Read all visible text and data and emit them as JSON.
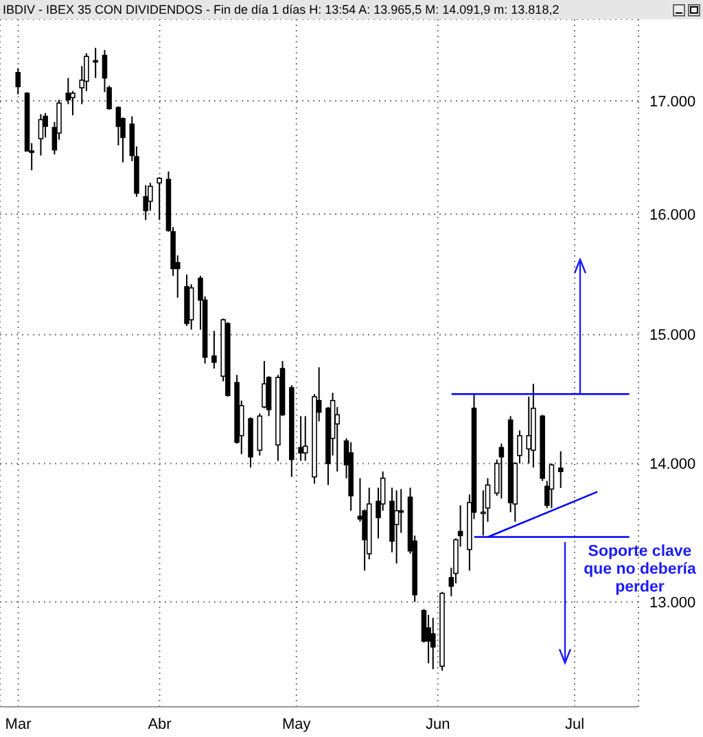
{
  "chart_data": {
    "type": "candlestick",
    "title": "IBDIV - IBEX 35 CON DIVIDENDOS - Fin de día 1 días H: 13:54 A: 13.965,5 M: 14.091,9 m: 13.818,2",
    "x": [
      "--03-01",
      "--03-03",
      "--03-04",
      "--03-06",
      "--03-07",
      "--03-09",
      "--03-10",
      "--03-12",
      "--03-13",
      "--03-15",
      "--03-16",
      "--03-18",
      "--03-20",
      "--03-21",
      "--03-23",
      "--03-24",
      "--03-26",
      "--03-27",
      "--03-29",
      "--03-30",
      "--04-01",
      "--04-03",
      "--04-04",
      "--04-05",
      "--04-07",
      "--04-08",
      "--04-10",
      "--04-11",
      "--04-13",
      "--04-15",
      "--04-16",
      "--04-18",
      "--04-19",
      "--04-21",
      "--04-23",
      "--04-24",
      "--04-25",
      "--04-27",
      "--04-28",
      "--04-30",
      "--05-02",
      "--05-03",
      "--05-05",
      "--05-06",
      "--05-08",
      "--05-09",
      "--05-10",
      "--05-12",
      "--05-13",
      "--05-15",
      "--05-16",
      "--05-17",
      "--05-19",
      "--05-20",
      "--05-22",
      "--05-23",
      "--05-24",
      "--05-26",
      "--05-27",
      "--05-29",
      "--05-30",
      "--05-31",
      "--06-02",
      "--06-04",
      "--06-05",
      "--06-06",
      "--06-08",
      "--06-09",
      "--06-11",
      "--06-12",
      "--06-14",
      "--06-15",
      "--06-17",
      "--06-18",
      "--06-19",
      "--06-21",
      "--06-22",
      "--06-24",
      "--06-25",
      "--06-26",
      "--06-28"
    ],
    "ohlc": [
      [
        17260,
        17300,
        17060,
        17130
      ],
      [
        17070,
        17080,
        16550,
        16550
      ],
      [
        16550,
        16620,
        16380,
        16540
      ],
      [
        16660,
        16880,
        16510,
        16830
      ],
      [
        16860,
        16890,
        16670,
        16770
      ],
      [
        16760,
        16810,
        16520,
        16560
      ],
      [
        16710,
        17010,
        16650,
        16980
      ],
      [
        17070,
        17210,
        16970,
        17010
      ],
      [
        17030,
        17090,
        16870,
        17070
      ],
      [
        17120,
        17320,
        16970,
        17190
      ],
      [
        17180,
        17440,
        17090,
        17410
      ],
      [
        17370,
        17490,
        17210,
        17360
      ],
      [
        17420,
        17470,
        17080,
        17210
      ],
      [
        17120,
        17140,
        16920,
        16930
      ],
      [
        16940,
        16950,
        16600,
        16770
      ],
      [
        16840,
        16850,
        16450,
        16670
      ],
      [
        16790,
        16860,
        16460,
        16510
      ],
      [
        16500,
        16590,
        16150,
        16180
      ],
      [
        16150,
        16250,
        15950,
        16030
      ],
      [
        16110,
        16270,
        16030,
        16240
      ],
      [
        16270,
        16320,
        15950,
        16310
      ],
      [
        16300,
        16370,
        15850,
        15860
      ],
      [
        15850,
        15890,
        15480,
        15540
      ],
      [
        15590,
        15650,
        15300,
        15540
      ],
      [
        15390,
        15490,
        15070,
        15090
      ],
      [
        15120,
        15410,
        15040,
        15380
      ],
      [
        15460,
        15480,
        15040,
        15280
      ],
      [
        15280,
        15310,
        14770,
        14820
      ],
      [
        14830,
        15030,
        14730,
        14780
      ],
      [
        14670,
        15130,
        14630,
        15120
      ],
      [
        15090,
        15100,
        14510,
        14520
      ],
      [
        14620,
        14680,
        14150,
        14160
      ],
      [
        14210,
        14480,
        14070,
        14440
      ],
      [
        14340,
        14350,
        13970,
        14050
      ],
      [
        14100,
        14380,
        14060,
        14360
      ],
      [
        14430,
        14790,
        14420,
        14610
      ],
      [
        14660,
        14670,
        14360,
        14410
      ],
      [
        14140,
        14680,
        14020,
        14660
      ],
      [
        14730,
        14790,
        14360,
        14370
      ],
      [
        14580,
        14600,
        13900,
        14030
      ],
      [
        14120,
        14360,
        14020,
        14080
      ],
      [
        14080,
        14360,
        14020,
        14130
      ],
      [
        13900,
        14530,
        13850,
        14510
      ],
      [
        14480,
        14740,
        14320,
        14390
      ],
      [
        14420,
        14430,
        13840,
        14000
      ],
      [
        14190,
        14540,
        14060,
        14480
      ],
      [
        14300,
        14430,
        13940,
        14370
      ],
      [
        14170,
        14190,
        13890,
        13990
      ],
      [
        14080,
        14160,
        13650,
        13760
      ],
      [
        13610,
        13890,
        13570,
        13590
      ],
      [
        13650,
        13660,
        13220,
        13440
      ],
      [
        13340,
        13820,
        13300,
        13700
      ],
      [
        13720,
        13820,
        13450,
        13600
      ],
      [
        13700,
        13940,
        13650,
        13890
      ],
      [
        13720,
        13820,
        13350,
        13430
      ],
      [
        13550,
        13800,
        13270,
        13650
      ],
      [
        13650,
        13810,
        13490,
        13640
      ],
      [
        13750,
        13820,
        13340,
        13360
      ],
      [
        13430,
        13470,
        13000,
        13050
      ],
      [
        12940,
        12950,
        12720,
        12730
      ],
      [
        12820,
        12910,
        12580,
        12730
      ],
      [
        12780,
        12890,
        12540,
        12690
      ],
      [
        12560,
        13070,
        12530,
        13060
      ],
      [
        13170,
        13240,
        13040,
        13110
      ],
      [
        13200,
        13450,
        13130,
        13440
      ],
      [
        13500,
        13690,
        13390,
        13470
      ],
      [
        13370,
        13770,
        13220,
        13710
      ],
      [
        14420,
        14530,
        13590,
        13640
      ],
      [
        13630,
        13800,
        13470,
        13640
      ],
      [
        13670,
        13890,
        13570,
        13840
      ],
      [
        13780,
        14030,
        13760,
        14000
      ],
      [
        14120,
        14150,
        13740,
        14050
      ],
      [
        14330,
        14360,
        13640,
        13710
      ],
      [
        13700,
        14010,
        13570,
        14000
      ],
      [
        14060,
        14250,
        14000,
        14210
      ],
      [
        14110,
        14510,
        14000,
        14210
      ],
      [
        14100,
        14610,
        13970,
        14420
      ],
      [
        14360,
        14370,
        13870,
        13890
      ],
      [
        13830,
        13870,
        13670,
        13690
      ],
      [
        13810,
        14000,
        13670,
        13990
      ],
      [
        13965.5,
        14091.9,
        13818.2,
        13940
      ]
    ],
    "series": [
      {
        "type": "line",
        "color": "#0000ff",
        "x": [
          "--06-04",
          "--07-13"
        ],
        "values": [
          14530,
          14530
        ]
      },
      {
        "type": "line",
        "color": "#0000ff",
        "x": [
          "--06-09",
          "--07-13"
        ],
        "values": [
          13460,
          13460
        ]
      },
      {
        "type": "line",
        "color": "#0000ff",
        "x": [
          "--06-12",
          "--07-06"
        ],
        "values": [
          13460,
          13790
        ]
      }
    ],
    "annotations": [
      "Soporte clave\nque no debería\nperder"
    ],
    "xlim": [
      "--02-25",
      "--07-15"
    ],
    "xticks": [
      {
        "value": "--03-01",
        "label": "Mar"
      },
      {
        "value": "--04-01",
        "label": "Abr"
      },
      {
        "value": "--05-01",
        "label": "May"
      },
      {
        "value": "--06-01",
        "label": "Jun"
      },
      {
        "value": "--07-01",
        "label": "Jul"
      }
    ],
    "ylim": [
      12290,
      17760
    ],
    "yticks": [
      {
        "value": 13000,
        "label": "13.000"
      },
      {
        "value": 14000,
        "label": "14.000"
      },
      {
        "value": 15000,
        "label": "15.000"
      },
      {
        "value": 16000,
        "label": "16.000"
      },
      {
        "value": 17000,
        "label": "17.000"
      }
    ],
    "log": true,
    "grid": true,
    "marker": "none",
    "line_style": "solid"
  }
}
